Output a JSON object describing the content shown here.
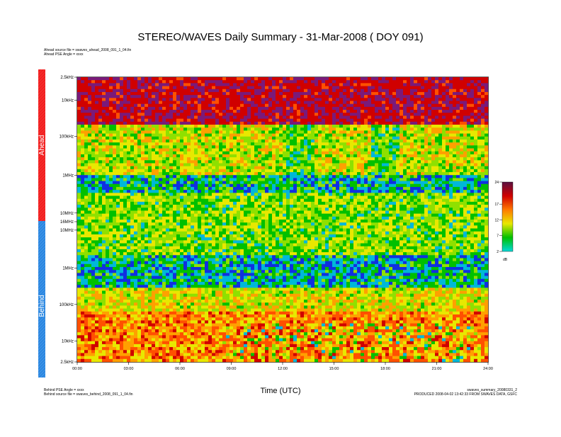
{
  "title": "STEREO/WAVES Daily Summary - 31-Mar-2008 ( DOY 091)",
  "header_notes": [
    "Ahead source file = swaves_ahead_2008_091_1_04.fin",
    "Ahead PSE Angle = xxxx"
  ],
  "footer_left": [
    "Behind PSE Angle = xxxx",
    "Behind source file = swaves_behind_2008_091_1_04.fin"
  ],
  "footer_right": [
    "swaves_summary_20080331_2",
    "PRODUCED 2008-04-02 13:42:33 FROM SWAVES DATA, GSFC"
  ],
  "chart_data": {
    "type": "heatmap",
    "title": "STEREO/WAVES Daily Summary - 31-Mar-2008 ( DOY 091)",
    "xlabel": "Time (UTC)",
    "x_ticks": [
      "00:00",
      "03:00",
      "06:00",
      "09:00",
      "12:00",
      "15:00",
      "18:00",
      "21:00",
      "24:00"
    ],
    "xlim": [
      0,
      24
    ],
    "panels": [
      {
        "name": "Ahead",
        "y_ticks": [
          "2.5kHz",
          "10kHz",
          "100kHz",
          "1MHz",
          "10MHz",
          "16MHz"
        ],
        "y_order": "top-to-bottom",
        "color": "#ee2222"
      },
      {
        "name": "Behind",
        "y_ticks": [
          "10MHz",
          "1MHz",
          "100kHz",
          "10kHz",
          "2.5kHz"
        ],
        "y_order": "top-to-bottom",
        "color": "#3a8ee6"
      }
    ],
    "colorbar": {
      "ticks": [
        2,
        7,
        12,
        17,
        24
      ],
      "unit": "dB",
      "range": [
        2,
        24
      ],
      "colors": [
        "#00d9d9",
        "#00c000",
        "#e8e800",
        "#ff7a00",
        "#d00000",
        "#5a1040"
      ]
    }
  }
}
